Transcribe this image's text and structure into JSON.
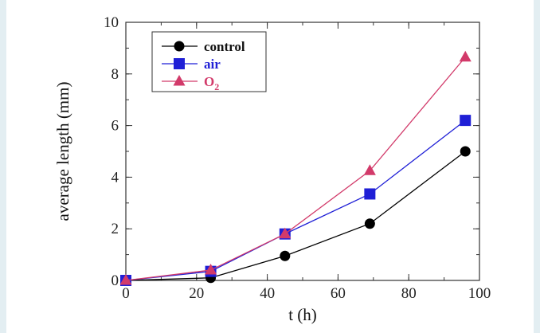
{
  "chart_data": {
    "type": "line",
    "xlabel": "t (h)",
    "ylabel": "average length (mm)",
    "xlim": [
      0,
      100
    ],
    "ylim": [
      0,
      10
    ],
    "x_ticks": [
      0,
      20,
      40,
      60,
      80,
      100
    ],
    "y_ticks": [
      0,
      2,
      4,
      6,
      8,
      10
    ],
    "grid": false,
    "legend_position": "top-left",
    "series": [
      {
        "name": "control",
        "color": "#000000",
        "marker": "circle",
        "points": [
          [
            0,
            0
          ],
          [
            24,
            0.1
          ],
          [
            45,
            0.95
          ],
          [
            69,
            2.2
          ],
          [
            96,
            5.0
          ]
        ]
      },
      {
        "name": "air",
        "color": "#1f1fd6",
        "marker": "square",
        "points": [
          [
            0,
            0
          ],
          [
            24,
            0.35
          ],
          [
            45,
            1.8
          ],
          [
            69,
            3.35
          ],
          [
            96,
            6.2
          ]
        ]
      },
      {
        "name": "O2",
        "color": "#d23a6a",
        "marker": "triangle",
        "points": [
          [
            0,
            0
          ],
          [
            24,
            0.4
          ],
          [
            45,
            1.8
          ],
          [
            69,
            4.25
          ],
          [
            96,
            8.65
          ]
        ]
      }
    ]
  }
}
